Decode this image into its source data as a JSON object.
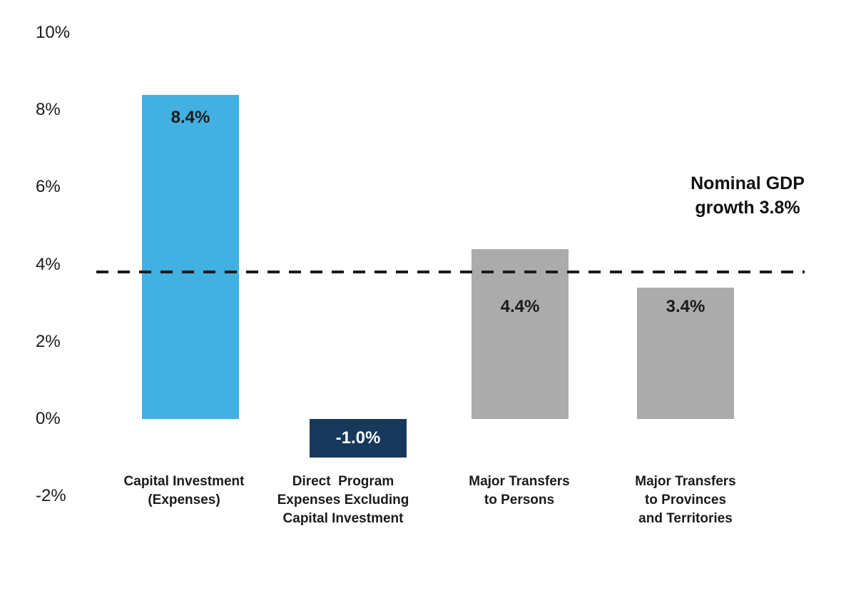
{
  "chart_data": {
    "type": "bar",
    "title": "",
    "xlabel": "",
    "ylabel": "",
    "background": "#FFFFFF",
    "grid": false,
    "legend": false,
    "y_axis": {
      "tick_labels": [
        "10%",
        "8%",
        "6%",
        "4%",
        "2%",
        "0%",
        "-2%"
      ],
      "tick_values": [
        10,
        8,
        6,
        4,
        2,
        0,
        -2
      ],
      "ylim": [
        -2,
        10
      ]
    },
    "bars": [
      {
        "category": "Capital Investment\n(Expenses)",
        "value": 8.4,
        "data_label": "8.4%",
        "color": "#42B0E0",
        "label_color": "#1A1A1A",
        "label_y_value": 7.8
      },
      {
        "category": "Direct  Program\nExpenses Excluding\nCapital Investment",
        "value": -1.0,
        "data_label": "-1.0%",
        "color": "#17395C",
        "label_color": "#FFFFFF",
        "label_y_value": -0.5
      },
      {
        "category": "Major Transfers\nto Persons",
        "value": 4.4,
        "data_label": "4.4%",
        "color": "#ABABAB",
        "label_color": "#1A1A1A",
        "label_y_value": 2.9
      },
      {
        "category": "Major Transfers\nto Provinces\nand Territories",
        "value": 3.4,
        "data_label": "3.4%",
        "color": "#ABABAB",
        "label_color": "#1A1A1A",
        "label_y_value": 2.9
      }
    ],
    "reference_line": {
      "value": 3.8,
      "label": "Nominal GDP\ngrowth 3.8%",
      "style": "dashed",
      "color": "#1B1B1B"
    }
  }
}
